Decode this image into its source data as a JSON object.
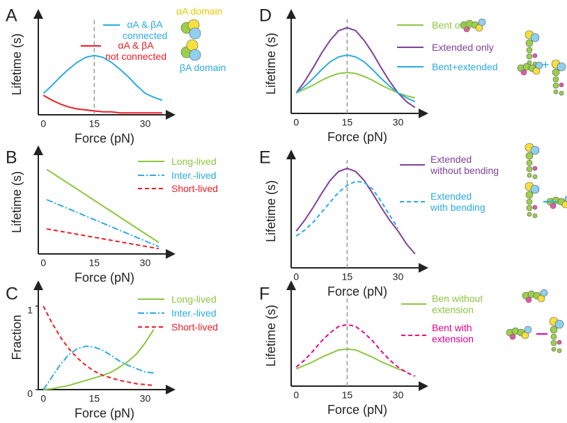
{
  "chart_data": [
    {
      "type": "line",
      "panel": "A",
      "xlabel": "Force (pN)",
      "ylabel": "Lifetime (s)",
      "xlim": [
        -1.5,
        37.5
      ],
      "xticks": [
        0,
        15,
        30
      ],
      "ylim": [
        0,
        1
      ],
      "vline": 15,
      "x": [
        0,
        2.5,
        5,
        7.5,
        10,
        12.5,
        15,
        17.5,
        20,
        22.5,
        25,
        27.5,
        30,
        32.5,
        35
      ],
      "series": [
        {
          "name": "αA & βA\nconnected",
          "color": "#29abe2",
          "dash": "solid",
          "values": [
            0.22,
            0.3,
            0.39,
            0.47,
            0.54,
            0.59,
            0.61,
            0.59,
            0.54,
            0.47,
            0.39,
            0.3,
            0.22,
            0.18,
            0.15
          ]
        },
        {
          "name": "αA & βA\nnot connected",
          "color": "#ed1c24",
          "dash": "solid",
          "values": [
            0.2,
            0.15,
            0.11,
            0.08,
            0.06,
            0.05,
            0.04,
            0.03,
            0.03,
            0.02,
            0.02,
            0.02,
            0.02,
            0.02,
            0.02
          ]
        }
      ],
      "annotations": [
        "αA domain",
        "βA domain"
      ]
    },
    {
      "type": "line",
      "panel": "B",
      "xlabel": "Force (pN)",
      "ylabel": "Lifetime (s)",
      "xlim": [
        -1.5,
        37.5
      ],
      "xticks": [
        0,
        15,
        30
      ],
      "ylim": [
        0,
        1
      ],
      "x": [
        1,
        34
      ],
      "series": [
        {
          "name": "Long-lived",
          "color": "#8dc63f",
          "dash": "solid",
          "values": [
            0.81,
            0.11
          ]
        },
        {
          "name": "Inter.-lived",
          "color": "#29abe2",
          "dash": "dashdot",
          "values": [
            0.52,
            0.07
          ]
        },
        {
          "name": "Short-lived",
          "color": "#ed1c24",
          "dash": "dashed",
          "values": [
            0.24,
            0.05
          ]
        }
      ]
    },
    {
      "type": "line",
      "panel": "C",
      "xlabel": "Force (pN)",
      "ylabel": "Fraction",
      "xlim": [
        -1.5,
        37.5
      ],
      "xticks": [
        0,
        15,
        30
      ],
      "ylim": [
        0,
        1.2
      ],
      "yticks": [
        0,
        1
      ],
      "x": [
        0,
        2.5,
        5,
        7.5,
        10,
        12.5,
        15,
        17.5,
        20,
        22.5,
        25,
        27.5,
        30,
        32.5
      ],
      "series": [
        {
          "name": "Long-lived",
          "color": "#8dc63f",
          "dash": "solid",
          "values": [
            0,
            0.01,
            0.03,
            0.05,
            0.08,
            0.11,
            0.14,
            0.17,
            0.21,
            0.27,
            0.34,
            0.43,
            0.56,
            0.72
          ]
        },
        {
          "name": "Inter.-lived",
          "color": "#29abe2",
          "dash": "dashdot",
          "values": [
            0,
            0.15,
            0.3,
            0.42,
            0.49,
            0.52,
            0.51,
            0.47,
            0.41,
            0.34,
            0.29,
            0.25,
            0.21,
            0.2
          ]
        },
        {
          "name": "Short-lived",
          "color": "#ed1c24",
          "dash": "dashed",
          "values": [
            1.0,
            0.8,
            0.63,
            0.49,
            0.38,
            0.29,
            0.22,
            0.17,
            0.14,
            0.11,
            0.09,
            0.07,
            0.06,
            0.05
          ]
        }
      ]
    },
    {
      "type": "line",
      "panel": "D",
      "xlabel": "Force (pN)",
      "ylabel": "Lifetime (s)",
      "xlim": [
        -1.5,
        37.5
      ],
      "xticks": [
        0,
        15,
        30
      ],
      "ylim": [
        0,
        1
      ],
      "vline": 15,
      "x": [
        0,
        2.5,
        5,
        7.5,
        10,
        12.5,
        15,
        17.5,
        20,
        22.5,
        25,
        27.5,
        30,
        32.5,
        35
      ],
      "series": [
        {
          "name": "Bent only",
          "color": "#8dc63f",
          "dash": "solid",
          "values": [
            0.21,
            0.25,
            0.29,
            0.34,
            0.38,
            0.41,
            0.42,
            0.41,
            0.38,
            0.34,
            0.29,
            0.25,
            0.21,
            0.18,
            0.16
          ]
        },
        {
          "name": "Extended only",
          "color": "#7f3f98",
          "dash": "solid",
          "values": [
            0.21,
            0.33,
            0.47,
            0.62,
            0.75,
            0.85,
            0.88,
            0.85,
            0.75,
            0.62,
            0.47,
            0.33,
            0.21,
            0.12,
            0.06
          ]
        },
        {
          "name": "Bent+extended",
          "color": "#29abe2",
          "dash": "solid",
          "values": [
            0.21,
            0.28,
            0.36,
            0.45,
            0.53,
            0.58,
            0.6,
            0.58,
            0.53,
            0.45,
            0.36,
            0.28,
            0.21,
            0.16,
            0.12
          ]
        }
      ],
      "annotations": [
        "+"
      ]
    },
    {
      "type": "line",
      "panel": "E",
      "xlabel": "Force (pN)",
      "ylabel": "Lifetime (s)",
      "xlim": [
        -1.5,
        37.5
      ],
      "xticks": [
        0,
        15,
        30
      ],
      "ylim": [
        0,
        1.05
      ],
      "vline": 15,
      "x": [
        0,
        2.5,
        5,
        7.5,
        10,
        12.5,
        15,
        17.5,
        20,
        22.5,
        25,
        27.5,
        30,
        32.5,
        35
      ],
      "series": [
        {
          "name": "Extended\nwithout bending",
          "color": "#7f3f98",
          "dash": "solid",
          "values": [
            0.37,
            0.48,
            0.61,
            0.75,
            0.88,
            0.97,
            1.0,
            0.97,
            0.88,
            0.75,
            0.61,
            0.48,
            0.37,
            0.24,
            0.14
          ]
        },
        {
          "name": "Extended\nwith bending",
          "color": "#29abe2",
          "dash": "dashed",
          "values": [
            0.32,
            0.38,
            0.46,
            0.56,
            0.66,
            0.76,
            0.83,
            0.87,
            0.86,
            0.79,
            0.67,
            0.53,
            0.4,
            null,
            null
          ]
        }
      ]
    },
    {
      "type": "line",
      "panel": "F",
      "xlabel": "Force (pN)",
      "ylabel": "Lifetime (s)",
      "xlim": [
        -1.5,
        37.5
      ],
      "xticks": [
        0,
        15,
        30
      ],
      "ylim": [
        0,
        1
      ],
      "vline": 15,
      "x": [
        0,
        2.5,
        5,
        7.5,
        10,
        12.5,
        15,
        17.5,
        20,
        22.5,
        25,
        27.5,
        30,
        32.5,
        35
      ],
      "series": [
        {
          "name": "Ben without\nextension",
          "color": "#8dc63f",
          "dash": "solid",
          "values": [
            0.19,
            0.23,
            0.27,
            0.32,
            0.36,
            0.4,
            0.41,
            0.4,
            0.36,
            0.32,
            0.27,
            0.23,
            0.19,
            0.16,
            null
          ]
        },
        {
          "name": "Bent with\nextension",
          "color": "#ec008c",
          "dash": "dashed",
          "values": [
            0.21,
            0.29,
            0.39,
            0.5,
            0.59,
            0.66,
            0.68,
            0.66,
            0.59,
            0.5,
            0.39,
            0.29,
            0.21,
            0.15,
            0.11
          ]
        }
      ]
    }
  ]
}
